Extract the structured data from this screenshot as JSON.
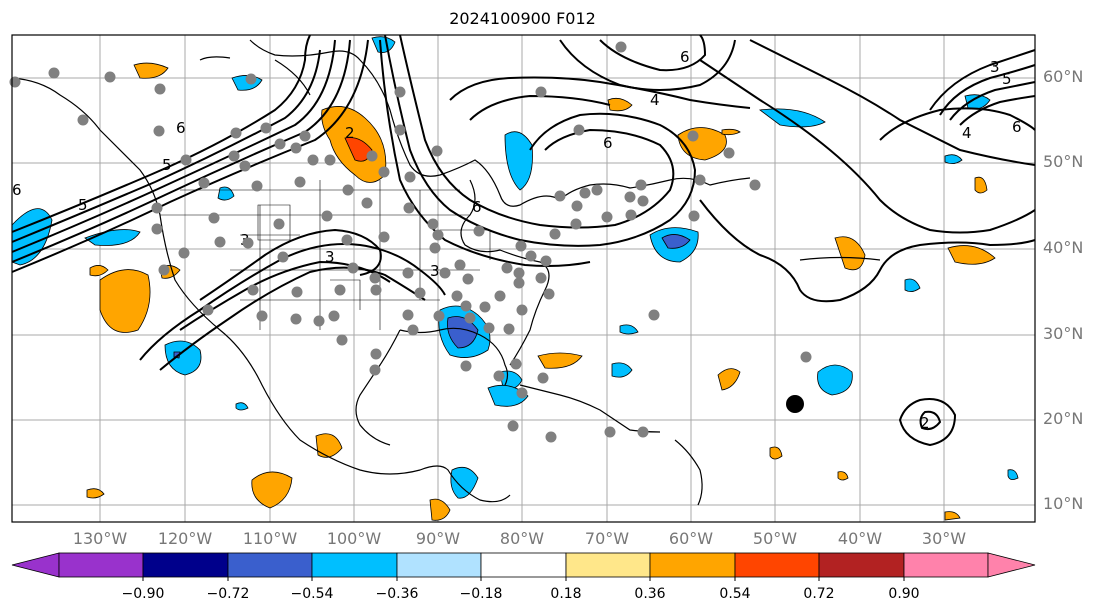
{
  "title": "2024100900 F012",
  "lat_labels": [
    "60°N",
    "50°N",
    "40°N",
    "30°N",
    "20°N",
    "10°N"
  ],
  "lon_labels": [
    "130°W",
    "120°W",
    "110°W",
    "100°W",
    "90°W",
    "80°W",
    "70°W",
    "60°W",
    "50°W",
    "40°W",
    "30°W"
  ],
  "colorbar": {
    "ticks": [
      "−0.90",
      "−0.72",
      "−0.54",
      "−0.36",
      "−0.18",
      "0.18",
      "0.36",
      "0.54",
      "0.72",
      "0.90"
    ],
    "colors": [
      "#9932cc",
      "#00008b",
      "#3a5fcd",
      "#00bfff",
      "#b0e2ff",
      "#ffffff",
      "#ffe78a",
      "#ffa500",
      "#ff4500",
      "#b22222",
      "#ff82ab"
    ]
  },
  "contour_labels": [
    "6",
    "6",
    "5",
    "5",
    "3",
    "3",
    "3",
    "2",
    "6",
    "4",
    "6",
    "3",
    "6",
    "4",
    "6",
    "5",
    "2"
  ]
}
